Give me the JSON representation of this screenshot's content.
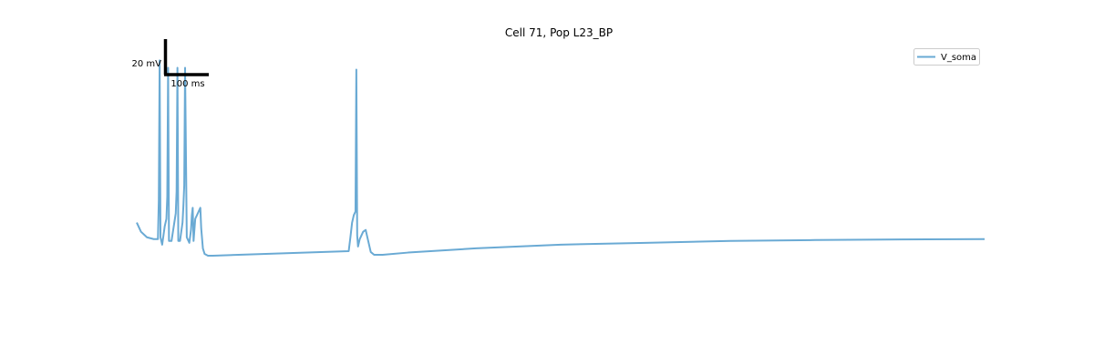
{
  "chart_data": {
    "type": "line",
    "title": "Cell 71, Pop L23_BP",
    "xlabel": "",
    "ylabel": "",
    "axes_visible": false,
    "xlim": [
      0,
      1000
    ],
    "ylim": [
      -100,
      60
    ],
    "scale_bar": {
      "voltage_label": "20 mV",
      "voltage_value": 20,
      "time_label": "100 ms",
      "time_value": 100
    },
    "legend": {
      "position": "top-right",
      "entries": [
        "V_soma"
      ]
    },
    "series": [
      {
        "name": "V_soma",
        "color": "#6aaad4",
        "x": [
          0,
          5,
          12,
          20,
          25,
          26,
          27,
          28,
          30,
          33,
          35,
          36,
          37,
          38,
          41,
          44,
          46,
          47,
          48,
          49,
          51,
          54,
          55,
          56,
          57,
          59,
          62,
          64,
          65,
          66,
          67,
          69,
          73,
          75,
          76,
          78,
          80,
          84,
          90,
          250,
          252,
          254,
          256,
          258,
          259,
          260,
          261,
          263,
          267,
          270,
          273,
          276,
          280,
          290,
          320,
          400,
          500,
          600,
          700,
          800,
          900,
          1000
        ],
        "y": [
          -42,
          -47,
          -50,
          -51,
          -51,
          -30,
          46,
          -50,
          -54,
          -44,
          -40,
          -28,
          42,
          -52,
          -52,
          -43,
          -37,
          -25,
          42,
          -52,
          -52,
          -42,
          -33,
          -22,
          42,
          -50,
          -53,
          -46,
          -38,
          -34,
          -52,
          -40,
          -36,
          -34,
          -45,
          -56,
          -59,
          -60,
          -60,
          -57.5,
          -50,
          -42,
          -38,
          -36,
          41,
          -49,
          -55,
          -51,
          -47,
          -46,
          -52,
          -58,
          -59.5,
          -59.5,
          -58.3,
          -56,
          -54,
          -53,
          -52,
          -51.5,
          -51.2,
          -51
        ]
      }
    ]
  }
}
